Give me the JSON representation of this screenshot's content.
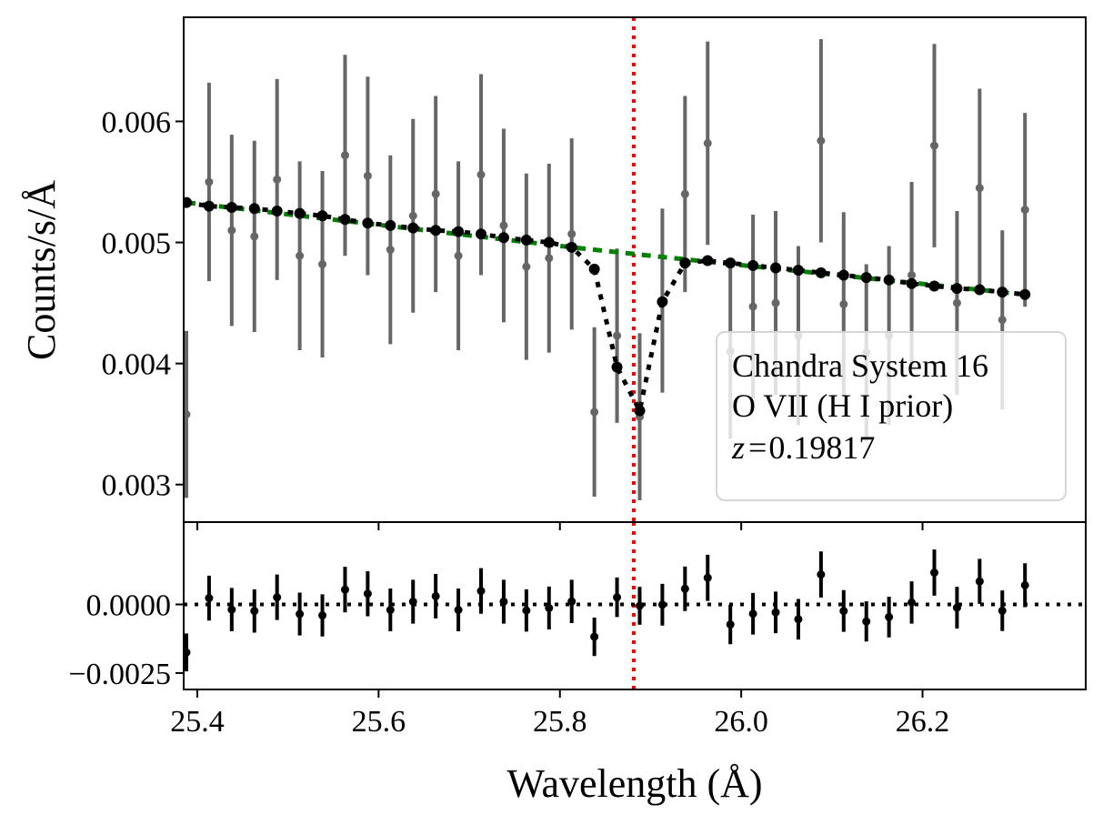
{
  "chart_data": [
    {
      "type": "scatter",
      "panel": "spectrum",
      "ylabel": "Counts/s/Å",
      "xlim": [
        25.385,
        26.38
      ],
      "ylim": [
        0.00269,
        0.00686
      ],
      "yticks": [
        0.003,
        0.004,
        0.005,
        0.006
      ],
      "ytick_labels": [
        "0.003",
        "0.004",
        "0.005",
        "0.006"
      ],
      "series": [
        {
          "name": "data",
          "color": "#666666",
          "x": [
            25.388,
            25.413,
            25.438,
            25.463,
            25.488,
            25.513,
            25.538,
            25.563,
            25.588,
            25.613,
            25.638,
            25.663,
            25.688,
            25.713,
            25.738,
            25.763,
            25.788,
            25.813,
            25.838,
            25.863,
            25.888,
            25.913,
            25.938,
            25.963,
            25.988,
            26.013,
            26.038,
            26.063,
            26.088,
            26.113,
            26.138,
            26.163,
            26.188,
            26.213,
            26.238,
            26.263,
            26.288,
            26.313
          ],
          "y": [
            0.00358,
            0.0055,
            0.0051,
            0.00505,
            0.00552,
            0.00489,
            0.00482,
            0.00572,
            0.00555,
            0.00494,
            0.00522,
            0.0054,
            0.00489,
            0.00556,
            0.00514,
            0.0048,
            0.00487,
            0.00507,
            0.0036,
            0.00423,
            0.00356,
            0.00452,
            0.0054,
            0.00582,
            0.0041,
            0.00447,
            0.0045,
            0.00423,
            0.00584,
            0.00449,
            0.00409,
            0.00423,
            0.00473,
            0.0058,
            0.0045,
            0.00545,
            0.00436,
            0.00527
          ],
          "yerr": [
            0.00069,
            0.00082,
            0.00079,
            0.00079,
            0.00083,
            0.00078,
            0.00077,
            0.00083,
            0.00082,
            0.00078,
            0.0008,
            0.00081,
            0.00078,
            0.00083,
            0.0008,
            0.00077,
            0.00078,
            0.00079,
            0.0007,
            0.00072,
            0.00069,
            0.00076,
            0.00081,
            0.00084,
            0.00072,
            0.00076,
            0.00076,
            0.00074,
            0.00084,
            0.00076,
            0.00073,
            0.00074,
            0.00077,
            0.00084,
            0.00076,
            0.00082,
            0.00074,
            0.0008
          ]
        },
        {
          "name": "model",
          "style": "dotted",
          "color": "#000000",
          "x": [
            25.388,
            25.413,
            25.438,
            25.463,
            25.488,
            25.513,
            25.538,
            25.563,
            25.588,
            25.613,
            25.638,
            25.663,
            25.688,
            25.713,
            25.738,
            25.763,
            25.788,
            25.813,
            25.838,
            25.863,
            25.888,
            25.913,
            25.938,
            25.963,
            25.988,
            26.013,
            26.038,
            26.063,
            26.088,
            26.113,
            26.138,
            26.163,
            26.188,
            26.213,
            26.238,
            26.263,
            26.288,
            26.313
          ],
          "y": [
            0.00533,
            0.0053,
            0.00529,
            0.00528,
            0.00526,
            0.00524,
            0.00522,
            0.00519,
            0.00516,
            0.00514,
            0.00512,
            0.0051,
            0.00509,
            0.00507,
            0.00504,
            0.00502,
            0.005,
            0.00496,
            0.00478,
            0.00397,
            0.00361,
            0.00451,
            0.00483,
            0.00485,
            0.00483,
            0.00481,
            0.00479,
            0.00477,
            0.00475,
            0.00473,
            0.00471,
            0.00469,
            0.00466,
            0.00464,
            0.00462,
            0.00461,
            0.00459,
            0.00457
          ]
        },
        {
          "name": "continuum",
          "style": "dashed",
          "color": "#008000",
          "x": [
            25.388,
            25.813,
            25.863,
            25.913,
            26.313
          ],
          "y": [
            0.00533,
            0.00496,
            0.00492,
            0.00488,
            0.00457
          ]
        }
      ],
      "vline": {
        "x": 25.884,
        "color": "#ff0000",
        "style": "dotted"
      },
      "legend": {
        "placement": "lower-right",
        "lines": [
          "Chandra System 16",
          "O VII (H I prior)"
        ],
        "z_symbol": "z",
        "z_equals": "=",
        "z_value": "0.19817"
      }
    },
    {
      "type": "scatter",
      "panel": "residuals",
      "xlabel": "Wavelength (Å)",
      "xlim": [
        25.385,
        26.38
      ],
      "ylim": [
        -0.0031,
        0.003
      ],
      "xticks": [
        25.4,
        25.6,
        25.8,
        26.0,
        26.2
      ],
      "xtick_labels": [
        "25.4",
        "25.6",
        "25.8",
        "26.0",
        "26.2"
      ],
      "yticks": [
        0.0,
        -0.0025
      ],
      "ytick_labels": [
        "0.0000",
        "−0.0025"
      ],
      "zero_line": {
        "y": 0.0,
        "style": "dotted",
        "color": "#000000"
      },
      "series": [
        {
          "name": "residuals",
          "color": "#000000",
          "x": [
            25.388,
            25.413,
            25.438,
            25.463,
            25.488,
            25.513,
            25.538,
            25.563,
            25.588,
            25.613,
            25.638,
            25.663,
            25.688,
            25.713,
            25.738,
            25.763,
            25.788,
            25.813,
            25.838,
            25.863,
            25.888,
            25.913,
            25.938,
            25.963,
            25.988,
            26.013,
            26.038,
            26.063,
            26.088,
            26.113,
            26.138,
            26.163,
            26.188,
            26.213,
            26.238,
            26.263,
            26.288,
            26.313
          ],
          "y": [
            -0.00175,
            0.00023,
            -0.00019,
            -0.00024,
            0.00026,
            -0.00035,
            -0.0004,
            0.00054,
            0.00039,
            -0.0002,
            0.0001,
            0.0003,
            -0.0002,
            0.00049,
            0.0001,
            -0.00022,
            -0.00013,
            0.00011,
            -0.00118,
            0.00026,
            -5e-05,
            -1e-05,
            0.00057,
            0.00097,
            -0.00073,
            -0.00034,
            -0.00029,
            -0.00054,
            0.00109,
            -0.00024,
            -0.00062,
            -0.00046,
            7e-05,
            0.00116,
            -0.00012,
            0.00084,
            -0.00023,
            0.0007
          ]
        }
      ]
    }
  ]
}
